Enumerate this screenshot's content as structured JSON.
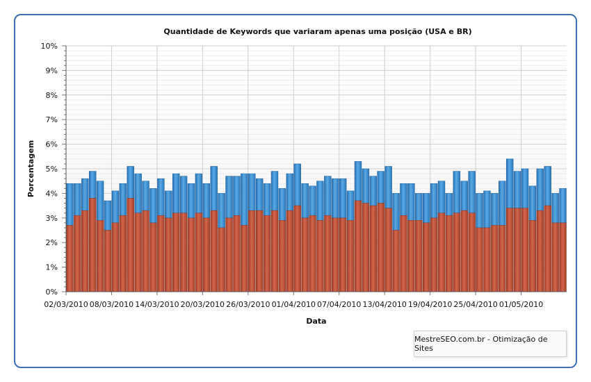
{
  "chart_data": {
    "type": "bar",
    "stacked": true,
    "title": "Quantidade de Keywords que variaram apenas uma posição (USA e BR)",
    "xlabel": "Data",
    "ylabel": "Porcentagem",
    "ylim": [
      0,
      10
    ],
    "yticks": [
      "0%",
      "1%",
      "2%",
      "3%",
      "4%",
      "5%",
      "6%",
      "7%",
      "8%",
      "9%",
      "10%"
    ],
    "xticks": [
      "02/03/2010",
      "08/03/2010",
      "14/03/2010",
      "20/03/2010",
      "26/03/2010",
      "01/04/2010",
      "07/04/2010",
      "13/04/2010",
      "19/04/2010",
      "25/04/2010",
      "01/05/2010"
    ],
    "grid": true,
    "colors": {
      "series_bottom": "#c0503a",
      "series_top": "#3d8fd0"
    },
    "dates": [
      "02/03/2010",
      "03/03/2010",
      "04/03/2010",
      "05/03/2010",
      "06/03/2010",
      "07/03/2010",
      "08/03/2010",
      "09/03/2010",
      "10/03/2010",
      "11/03/2010",
      "12/03/2010",
      "13/03/2010",
      "14/03/2010",
      "15/03/2010",
      "16/03/2010",
      "17/03/2010",
      "18/03/2010",
      "19/03/2010",
      "20/03/2010",
      "21/03/2010",
      "22/03/2010",
      "23/03/2010",
      "24/03/2010",
      "25/03/2010",
      "26/03/2010",
      "27/03/2010",
      "28/03/2010",
      "29/03/2010",
      "30/03/2010",
      "31/03/2010",
      "01/04/2010",
      "02/04/2010",
      "03/04/2010",
      "04/04/2010",
      "05/04/2010",
      "06/04/2010",
      "07/04/2010",
      "08/04/2010",
      "09/04/2010",
      "10/04/2010",
      "11/04/2010",
      "12/04/2010",
      "13/04/2010",
      "14/04/2010",
      "15/04/2010",
      "16/04/2010",
      "17/04/2010",
      "18/04/2010",
      "19/04/2010",
      "20/04/2010",
      "21/04/2010",
      "22/04/2010",
      "23/04/2010",
      "24/04/2010",
      "25/04/2010",
      "26/04/2010",
      "27/04/2010",
      "28/04/2010",
      "29/04/2010",
      "30/04/2010",
      "01/05/2010",
      "02/05/2010",
      "03/05/2010",
      "04/05/2010",
      "05/05/2010",
      "06/05/2010"
    ],
    "series": [
      {
        "values": [
          2.7,
          3.1,
          3.3,
          3.8,
          2.9,
          2.5,
          2.8,
          3.1,
          3.8,
          3.2,
          3.3,
          2.8,
          3.1,
          3.0,
          3.2,
          3.2,
          3.0,
          3.2,
          3.0,
          3.3,
          2.6,
          3.0,
          3.1,
          2.7,
          3.3,
          3.3,
          3.1,
          3.3,
          2.9,
          3.3,
          3.5,
          3.0,
          3.1,
          2.9,
          3.1,
          3.0,
          3.0,
          2.9,
          3.7,
          3.6,
          3.5,
          3.6,
          3.4,
          2.5,
          3.1,
          2.9,
          2.9,
          2.8,
          3.0,
          3.2,
          3.1,
          3.2,
          3.3,
          3.2,
          2.6,
          2.6,
          2.7,
          2.7,
          3.4,
          3.4,
          3.4,
          2.9,
          3.3,
          3.5,
          2.8,
          2.8
        ]
      },
      {
        "values": [
          4.4,
          4.4,
          4.6,
          4.9,
          4.5,
          3.7,
          4.1,
          4.4,
          5.1,
          4.8,
          4.5,
          4.2,
          4.6,
          4.1,
          4.8,
          4.7,
          4.4,
          4.8,
          4.4,
          5.1,
          4.0,
          4.7,
          4.7,
          4.8,
          4.8,
          4.6,
          4.4,
          4.9,
          4.2,
          4.8,
          5.2,
          4.4,
          4.3,
          4.5,
          4.7,
          4.6,
          4.6,
          4.1,
          5.3,
          5.0,
          4.7,
          4.9,
          5.1,
          4.0,
          4.4,
          4.4,
          4.0,
          4.0,
          4.4,
          4.5,
          4.0,
          4.9,
          4.5,
          4.9,
          4.0,
          4.1,
          4.0,
          4.5,
          5.4,
          4.9,
          5.0,
          4.3,
          5.0,
          5.1,
          4.0,
          4.2
        ]
      }
    ]
  },
  "credit": "MestreSEO.com.br - Otimização de Sites"
}
